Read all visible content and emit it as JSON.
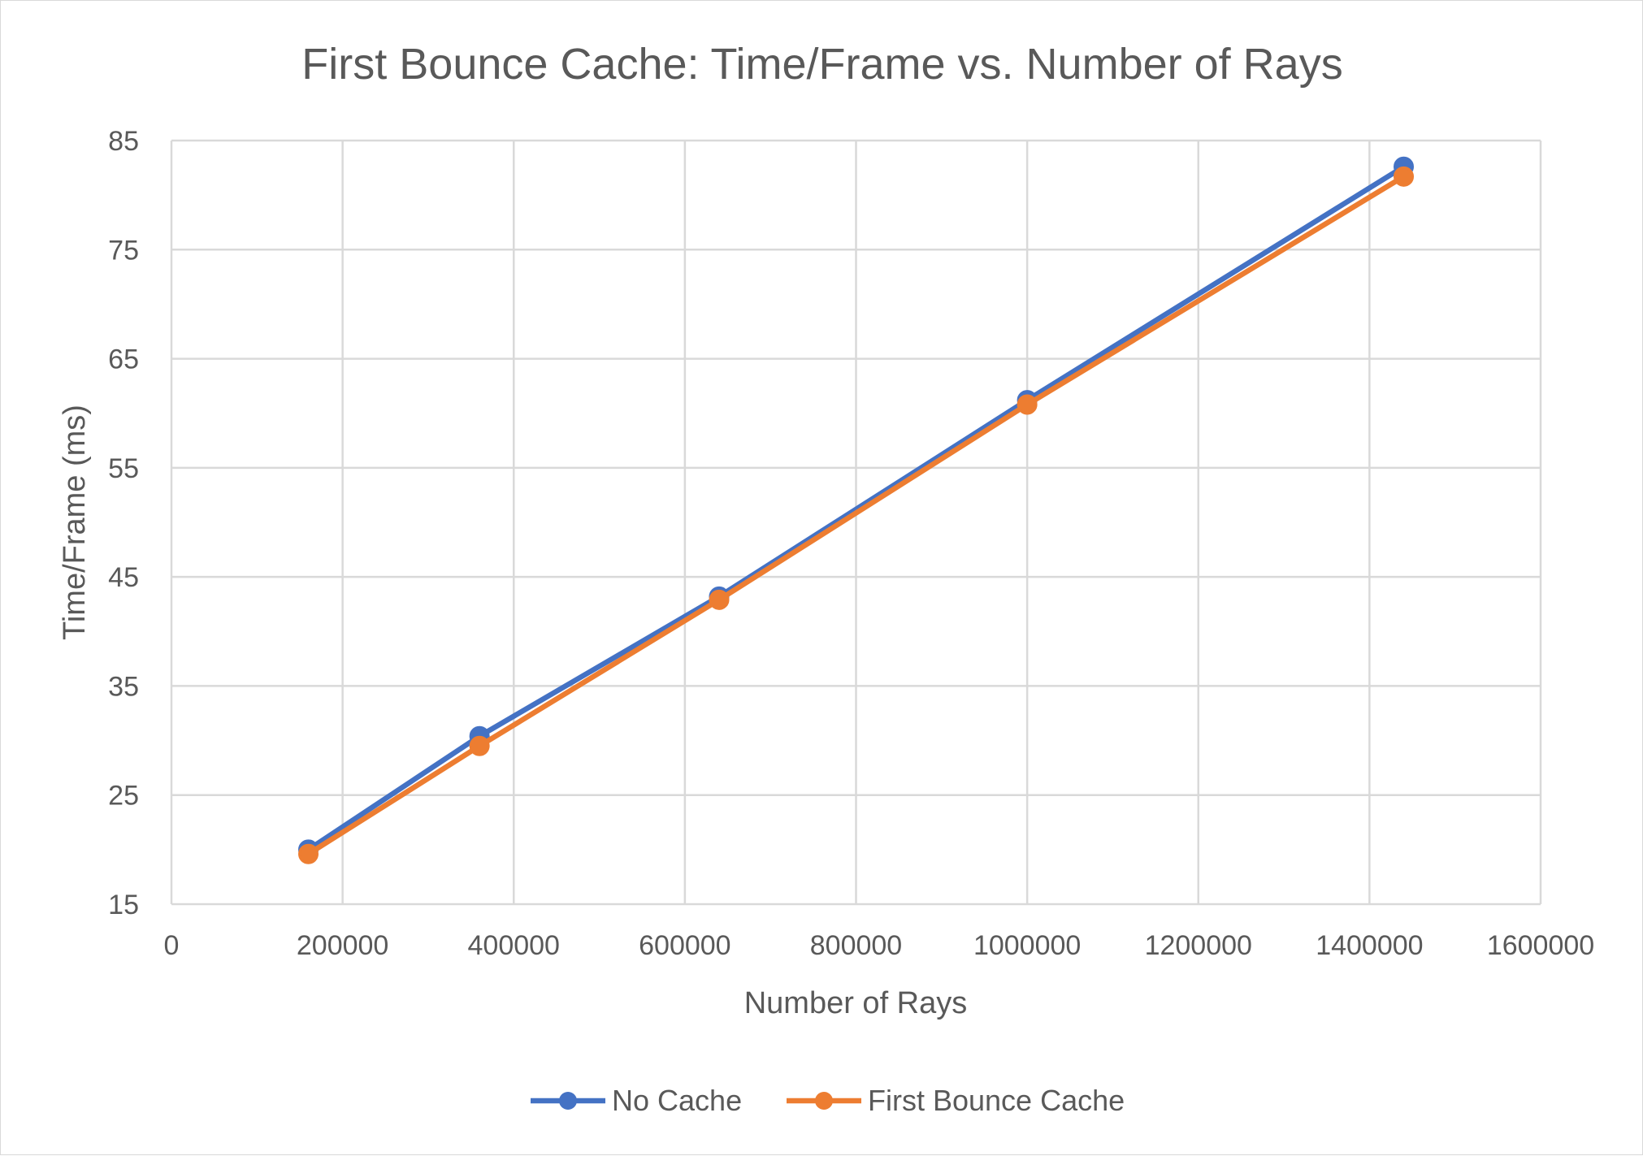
{
  "chart_data": {
    "type": "line",
    "title": "First Bounce Cache: Time/Frame vs. Number of Rays",
    "xlabel": "Number of Rays",
    "ylabel": "Time/Frame (ms)",
    "xlim": [
      0,
      1600000
    ],
    "ylim": [
      15,
      85
    ],
    "x_ticks": [
      0,
      200000,
      400000,
      600000,
      800000,
      1000000,
      1200000,
      1400000,
      1600000
    ],
    "y_ticks": [
      15,
      25,
      35,
      45,
      55,
      65,
      75,
      85
    ],
    "grid": true,
    "legend_position": "bottom",
    "series": [
      {
        "name": "No Cache",
        "color": "#4472c4",
        "x": [
          160000,
          360000,
          640000,
          1000000,
          1440000
        ],
        "y": [
          20.0,
          30.4,
          43.2,
          61.2,
          82.6
        ]
      },
      {
        "name": "First Bounce Cache",
        "color": "#ed7d31",
        "x": [
          160000,
          360000,
          640000,
          1000000,
          1440000
        ],
        "y": [
          19.6,
          29.5,
          42.9,
          60.8,
          81.7
        ]
      }
    ]
  }
}
